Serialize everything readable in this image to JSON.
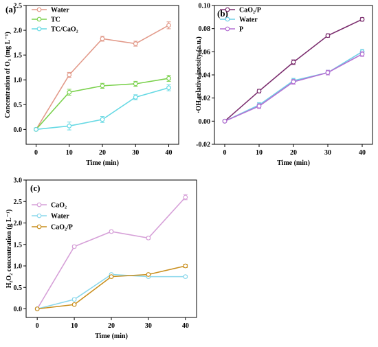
{
  "chart_data": [
    {
      "panel": "(a)",
      "type": "line",
      "title": "",
      "xlabel": "Time (min)",
      "ylabel": "Concentration of O₃ (mg L⁻¹)",
      "x": [
        0,
        10,
        20,
        30,
        40
      ],
      "xlim": [
        -3,
        43
      ],
      "ylim": [
        -0.3,
        2.5
      ],
      "xticks": [
        0,
        10,
        20,
        30,
        40
      ],
      "xtick_labels": [
        "0",
        "10",
        "20",
        "30",
        "40"
      ],
      "yticks": [
        0.0,
        0.5,
        1.0,
        1.5,
        2.0,
        2.5
      ],
      "ytick_labels": [
        "0.0",
        "0.5",
        "1.0",
        "1.5",
        "2.0",
        "2.5"
      ],
      "grid": false,
      "legend_position": "top-left",
      "series": [
        {
          "name": "Water",
          "color": "#e29a8a",
          "marker": "circle",
          "values": [
            0.0,
            1.1,
            1.83,
            1.73,
            2.1
          ],
          "error": [
            0.03,
            0.05,
            0.05,
            0.05,
            0.07
          ]
        },
        {
          "name": "TC",
          "color": "#7ad14c",
          "marker": "circle",
          "values": [
            0.0,
            0.75,
            0.88,
            0.92,
            1.03
          ],
          "error": [
            0.03,
            0.06,
            0.05,
            0.05,
            0.06
          ]
        },
        {
          "name": "TC/CaO₂",
          "color": "#66d9e4",
          "marker": "circle",
          "values": [
            0.0,
            0.07,
            0.2,
            0.65,
            0.84
          ],
          "error": [
            0.03,
            0.08,
            0.06,
            0.05,
            0.06
          ]
        }
      ]
    },
    {
      "panel": "(b)",
      "type": "line",
      "title": "",
      "xlabel": "Time (min)",
      "ylabel": "·OH relative inetsity (a.u.)",
      "x": [
        0,
        10,
        20,
        30,
        40
      ],
      "xlim": [
        -3,
        43
      ],
      "ylim": [
        -0.02,
        0.1
      ],
      "xticks": [
        0,
        10,
        20,
        30,
        40
      ],
      "xtick_labels": [
        "0",
        "10",
        "20",
        "30",
        "40"
      ],
      "yticks": [
        -0.02,
        0.0,
        0.02,
        0.04,
        0.06,
        0.08,
        0.1
      ],
      "ytick_labels": [
        "-0.02",
        "0.00",
        "0.02",
        "0.04",
        "0.06",
        "0.08",
        "0.10"
      ],
      "grid": false,
      "legend_position": "top-left",
      "series": [
        {
          "name": "CaO₂/P",
          "color": "#7b2d6e",
          "marker": "circle",
          "values": [
            0.0,
            0.026,
            0.051,
            0.074,
            0.088
          ],
          "error": [
            0.001,
            0.0015,
            0.002,
            0.0015,
            0.0015
          ]
        },
        {
          "name": "Water",
          "color": "#6fd0e6",
          "marker": "circle",
          "values": [
            0.0,
            0.014,
            0.035,
            0.042,
            0.06
          ],
          "error": [
            0.001,
            0.002,
            0.002,
            0.002,
            0.002
          ]
        },
        {
          "name": "P",
          "color": "#b46fd2",
          "marker": "circle",
          "values": [
            0.0,
            0.013,
            0.034,
            0.042,
            0.058
          ],
          "error": [
            0.001,
            0.002,
            0.002,
            0.002,
            0.002
          ]
        }
      ]
    },
    {
      "panel": "(c)",
      "type": "line",
      "title": "",
      "xlabel": "Time (min)",
      "ylabel": "H₂O₂ concentration (g L⁻¹)",
      "x": [
        0,
        10,
        20,
        30,
        40
      ],
      "xlim": [
        -3,
        43
      ],
      "ylim": [
        -0.2,
        3.0
      ],
      "xticks": [
        0,
        10,
        20,
        30,
        40
      ],
      "xtick_labels": [
        "0",
        "10",
        "20",
        "30",
        "40"
      ],
      "yticks": [
        0.0,
        0.5,
        1.0,
        1.5,
        2.0,
        2.5,
        3.0
      ],
      "ytick_labels": [
        "0.0",
        "0.5",
        "1.0",
        "1.5",
        "2.0",
        "2.5",
        "3.0"
      ],
      "grid": false,
      "legend_position": "top-left",
      "series": [
        {
          "name": "CaO₂",
          "color": "#d6a0d8",
          "marker": "circle",
          "values": [
            0.0,
            1.45,
            1.8,
            1.65,
            2.6
          ],
          "error": [
            0.02,
            0.03,
            0.03,
            0.03,
            0.06
          ]
        },
        {
          "name": "Water",
          "color": "#8cd8ec",
          "marker": "circle",
          "values": [
            0.0,
            0.22,
            0.8,
            0.75,
            0.75
          ],
          "error": [
            0.02,
            0.03,
            0.03,
            0.03,
            0.03
          ]
        },
        {
          "name": "CaO₂/P",
          "color": "#c98f1e",
          "marker": "circle",
          "values": [
            0.0,
            0.1,
            0.75,
            0.8,
            1.0
          ],
          "error": [
            0.02,
            0.02,
            0.03,
            0.03,
            0.04
          ]
        }
      ]
    }
  ]
}
